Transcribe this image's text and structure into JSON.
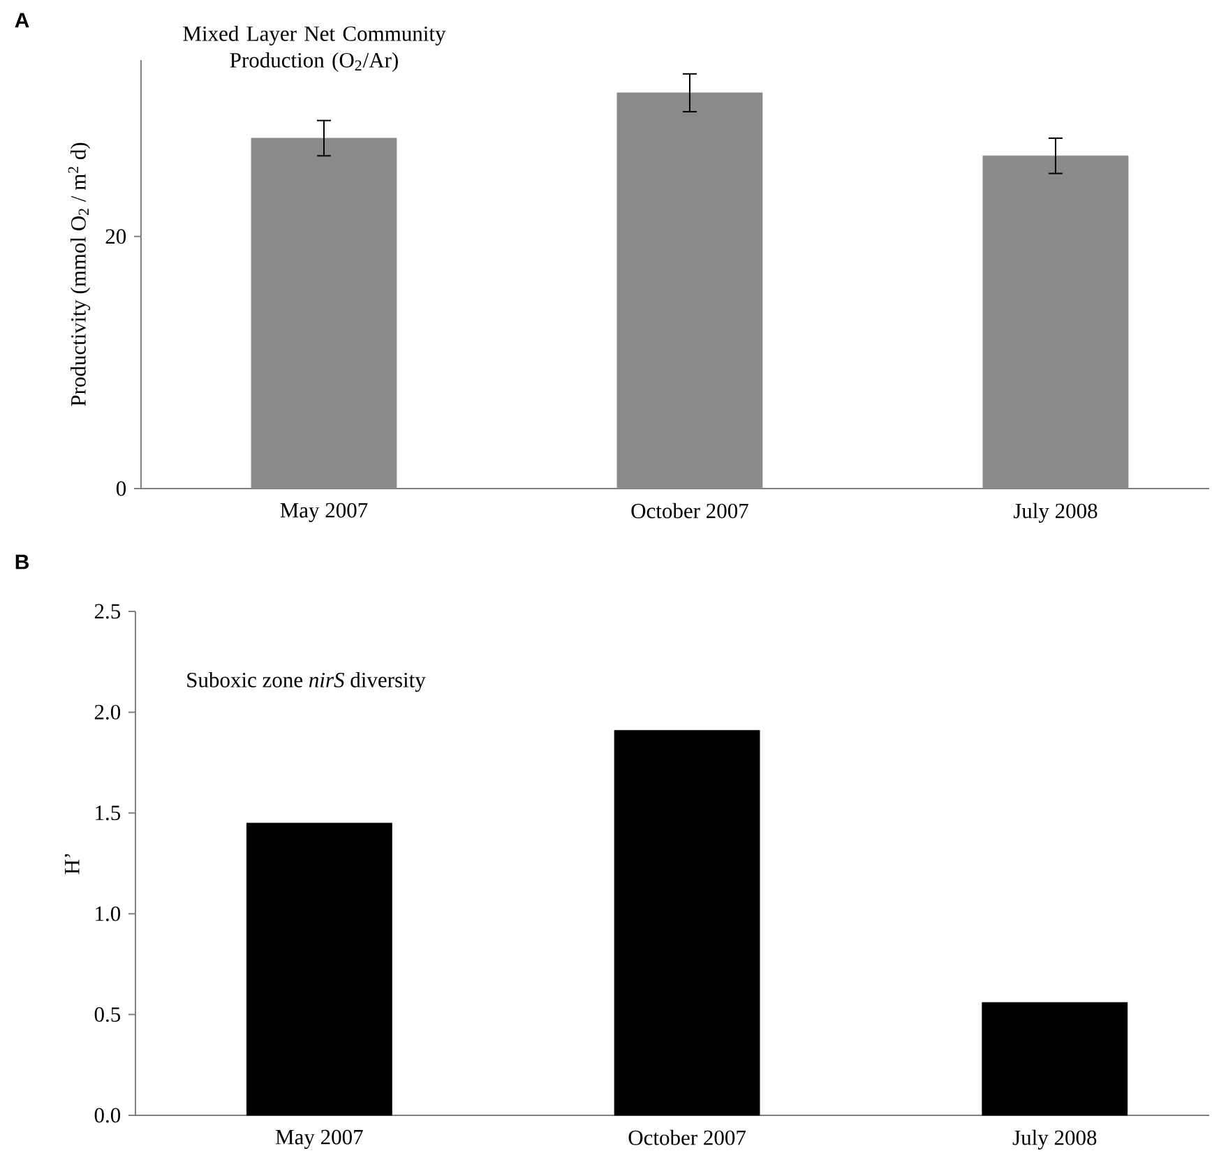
{
  "chart_data": [
    {
      "type": "bar",
      "title": "Mixed Layer Net Community Production (O$_{2}$/Ar)",
      "ylabel": "Productivity (mmol O$_{2}$ / m$^{2}$ d)",
      "categories": [
        "May 2007",
        "October 2007",
        "July 2008"
      ],
      "values": [
        27.8,
        31.4,
        26.4
      ],
      "errors": [
        1.4,
        1.5,
        1.4
      ],
      "color": "#8a8a8a",
      "ylim": [
        0,
        34
      ],
      "yticks": [
        0,
        20
      ],
      "annotations": [
        "A"
      ]
    },
    {
      "type": "bar",
      "ylabel": "H’",
      "categories": [
        "May 2007",
        "October 2007",
        "July 2008"
      ],
      "values": [
        1.45,
        1.91,
        0.56
      ],
      "color": "#000000",
      "ylim": [
        0,
        2.5
      ],
      "yticks": [
        {
          "value": 0,
          "label": "0.0"
        },
        0.5,
        {
          "value": 1,
          "label": "1.0"
        },
        1.5,
        {
          "value": 2,
          "label": "2.0"
        },
        2.5
      ],
      "annotations": [
        "B",
        "Suboxic zone *nirS* diversity"
      ]
    }
  ]
}
